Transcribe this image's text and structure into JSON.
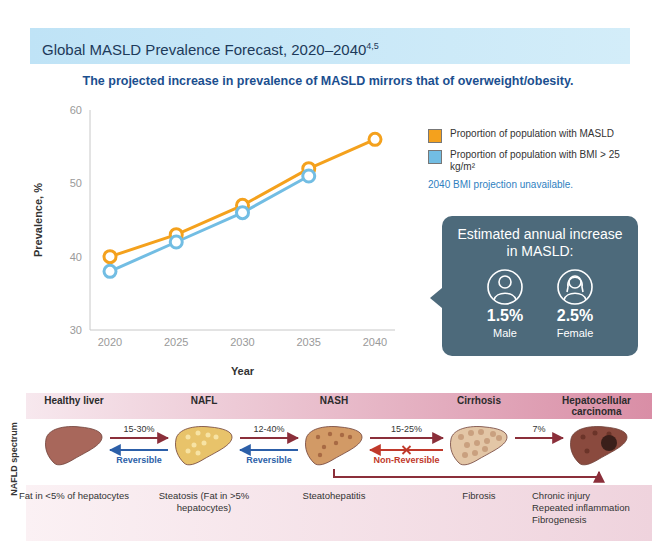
{
  "header": {
    "title": "Global MASLD Prevalence Forecast, 2020–2040",
    "title_refs": "4,5"
  },
  "chart_data": {
    "type": "line",
    "subtitle": "The projected increase in prevalence of MASLD mirrors that of overweight/obesity.",
    "x_label": "Year",
    "y_label": "Prevalence, %",
    "categories": [
      "2020",
      "2025",
      "2030",
      "2035",
      "2040"
    ],
    "series": [
      {
        "name": "Proportion of population with MASLD",
        "color": "#f4a11d",
        "marker": "circle",
        "values": [
          40,
          43,
          47,
          52,
          56
        ]
      },
      {
        "name": "Proportion of population with BMI > 25 kg/m²",
        "color": "#72bde3",
        "marker": "circle",
        "values": [
          38,
          42,
          46,
          51,
          null
        ]
      }
    ],
    "ylim": [
      30,
      60
    ],
    "yticks": [
      30,
      40,
      50,
      60
    ],
    "grid": false,
    "legend": "right",
    "note": "2040 BMI projection unavailable."
  },
  "callout": {
    "title": "Estimated annual increase in MASLD:",
    "items": [
      {
        "label": "Male",
        "value": "1.5%"
      },
      {
        "label": "Female",
        "value": "2.5%"
      }
    ]
  },
  "spectrum": {
    "side_label": "NAFLD spectrum",
    "stages": [
      {
        "name": "Healthy liver",
        "description": [
          "Fat in <5% of hepatocytes"
        ]
      },
      {
        "name": "NAFL",
        "description": [
          "Steatosis (Fat in >5% hepatocytes)"
        ]
      },
      {
        "name": "NASH",
        "description": [
          "Steatohepatitis"
        ]
      },
      {
        "name": "Cirrhosis",
        "description": [
          "Fibrosis"
        ]
      },
      {
        "name": "Hepatocellular carcinoma",
        "description": [
          "Chronic injury",
          "Repeated inflammation",
          "Fibrogenesis"
        ]
      }
    ],
    "transitions": [
      {
        "rate": "15-30%",
        "reverse_label": "Reversible",
        "reversible": true
      },
      {
        "rate": "12-40%",
        "reverse_label": "Reversible",
        "reversible": true
      },
      {
        "rate": "15-25%",
        "reverse_label": "Non-Reversible",
        "reversible": false
      },
      {
        "rate": "7%"
      }
    ]
  }
}
